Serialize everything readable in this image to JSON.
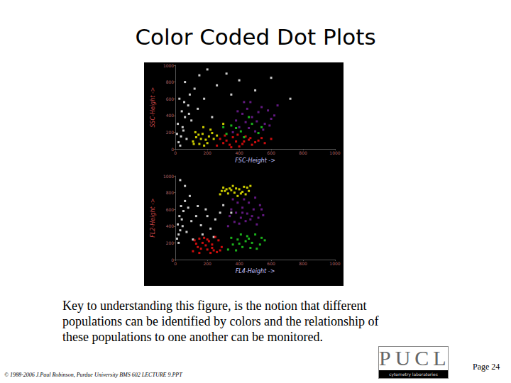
{
  "slide": {
    "title": "Color Coded Dot Plots",
    "caption": [
      "Key to understanding this figure, is the notion that different",
      "populations can be identified by colors and the relationship of",
      "these populations to one another can be monitored."
    ],
    "footer": "© 1988-2006 J.Paul Robinson, Purdue University BMS 602 LECTURE 9.PPT",
    "page": "Page 24",
    "logo": {
      "text": "PUCL",
      "subtitle": "cytometry laboratories"
    }
  },
  "chart_data": [
    {
      "type": "scatter",
      "x_label": "FSC-Height ->",
      "y_label": "SSC-Height ->",
      "xlim": [
        0,
        1000
      ],
      "ylim": [
        0,
        1000
      ],
      "xticks": [
        0,
        200,
        400,
        600,
        800,
        1000
      ],
      "yticks": [
        0,
        200,
        400,
        600,
        800,
        1000
      ],
      "grid": false,
      "marker": "square",
      "series": [
        {
          "color": "#ffffff",
          "values": [
            [
              20,
              80
            ],
            [
              35,
              150
            ],
            [
              50,
              220
            ],
            [
              15,
              300
            ],
            [
              60,
              380
            ],
            [
              40,
              450
            ],
            [
              80,
              520
            ],
            [
              25,
              600
            ],
            [
              90,
              650
            ],
            [
              120,
              720
            ],
            [
              60,
              800
            ],
            [
              150,
              880
            ],
            [
              200,
              950
            ],
            [
              70,
              120
            ],
            [
              45,
              260
            ],
            [
              30,
              40
            ],
            [
              100,
              340
            ],
            [
              180,
              600
            ],
            [
              260,
              760
            ],
            [
              320,
              900
            ],
            [
              400,
              820
            ],
            [
              500,
              700
            ],
            [
              140,
              480
            ],
            [
              10,
              180
            ],
            [
              55,
              560
            ],
            [
              85,
              420
            ],
            [
              230,
              380
            ],
            [
              350,
              650
            ],
            [
              600,
              850
            ],
            [
              720,
              600
            ]
          ]
        },
        {
          "color": "#ffff00",
          "values": [
            [
              110,
              90
            ],
            [
              130,
              140
            ],
            [
              150,
              60
            ],
            [
              170,
              180
            ],
            [
              190,
              110
            ],
            [
              210,
              150
            ],
            [
              125,
              200
            ],
            [
              160,
              120
            ],
            [
              200,
              70
            ],
            [
              230,
              190
            ],
            [
              145,
              170
            ],
            [
              180,
              40
            ],
            [
              240,
              120
            ],
            [
              115,
              60
            ],
            [
              260,
              160
            ],
            [
              220,
              230
            ],
            [
              300,
              300
            ],
            [
              175,
              260
            ]
          ]
        },
        {
          "color": "#ff1010",
          "values": [
            [
              260,
              40
            ],
            [
              300,
              70
            ],
            [
              340,
              50
            ],
            [
              380,
              90
            ],
            [
              420,
              60
            ],
            [
              460,
              110
            ],
            [
              500,
              80
            ],
            [
              540,
              130
            ],
            [
              280,
              120
            ],
            [
              320,
              100
            ],
            [
              360,
              140
            ],
            [
              400,
              30
            ],
            [
              440,
              150
            ],
            [
              480,
              50
            ],
            [
              520,
              100
            ],
            [
              560,
              70
            ],
            [
              600,
              120
            ],
            [
              310,
              160
            ],
            [
              390,
              170
            ],
            [
              470,
              130
            ],
            [
              350,
              20
            ],
            [
              430,
              90
            ]
          ]
        },
        {
          "color": "#7a1fa0",
          "values": [
            [
              360,
              200
            ],
            [
              400,
              260
            ],
            [
              440,
              320
            ],
            [
              480,
              380
            ],
            [
              520,
              440
            ],
            [
              560,
              300
            ],
            [
              600,
              360
            ],
            [
              420,
              420
            ],
            [
              460,
              250
            ],
            [
              500,
              210
            ],
            [
              540,
              500
            ],
            [
              580,
              460
            ],
            [
              620,
              400
            ],
            [
              380,
              340
            ],
            [
              450,
              480
            ],
            [
              510,
              330
            ],
            [
              470,
              560
            ],
            [
              640,
              520
            ],
            [
              390,
              450
            ],
            [
              550,
              230
            ],
            [
              430,
              560
            ],
            [
              590,
              280
            ]
          ]
        },
        {
          "color": "#22dd22",
          "values": [
            [
              320,
              180
            ],
            [
              380,
              250
            ],
            [
              430,
              140
            ],
            [
              480,
              300
            ],
            [
              350,
              280
            ],
            [
              410,
              210
            ],
            [
              520,
              190
            ],
            [
              300,
              260
            ],
            [
              460,
              380
            ],
            [
              540,
              260
            ]
          ]
        }
      ]
    },
    {
      "type": "scatter",
      "x_label": "FL4-Height ->",
      "y_label": "FL2-Height ->",
      "xlim": [
        0,
        1000
      ],
      "ylim": [
        0,
        1000
      ],
      "xticks": [
        0,
        200,
        400,
        600,
        800,
        1000
      ],
      "yticks": [
        0,
        200,
        400,
        600,
        800,
        1000
      ],
      "grid": false,
      "marker": "square",
      "series": [
        {
          "color": "#ffffff",
          "values": [
            [
              10,
              250
            ],
            [
              20,
              300
            ],
            [
              30,
              350
            ],
            [
              15,
              420
            ],
            [
              40,
              480
            ],
            [
              25,
              520
            ],
            [
              50,
              580
            ],
            [
              35,
              640
            ],
            [
              60,
              700
            ],
            [
              20,
              200
            ],
            [
              45,
              400
            ],
            [
              70,
              330
            ],
            [
              100,
              460
            ],
            [
              130,
              520
            ],
            [
              160,
              410
            ],
            [
              190,
              600
            ],
            [
              220,
              370
            ],
            [
              250,
              480
            ],
            [
              280,
              560
            ],
            [
              140,
              640
            ],
            [
              90,
              760
            ],
            [
              60,
              880
            ],
            [
              30,
              950
            ],
            [
              300,
              650
            ],
            [
              170,
              300
            ],
            [
              110,
              240
            ],
            [
              240,
              270
            ],
            [
              350,
              560
            ],
            [
              200,
              520
            ],
            [
              80,
              620
            ]
          ]
        },
        {
          "color": "#ffff00",
          "values": [
            [
              280,
              780
            ],
            [
              310,
              820
            ],
            [
              340,
              850
            ],
            [
              370,
              800
            ],
            [
              400,
              840
            ],
            [
              430,
              870
            ],
            [
              460,
              820
            ],
            [
              300,
              860
            ],
            [
              330,
              790
            ],
            [
              360,
              880
            ],
            [
              390,
              760
            ],
            [
              420,
              810
            ],
            [
              450,
              860
            ],
            [
              350,
              830
            ],
            [
              410,
              790
            ],
            [
              380,
              850
            ],
            [
              440,
              780
            ],
            [
              320,
              840
            ],
            [
              470,
              880
            ],
            [
              290,
              820
            ]
          ]
        },
        {
          "color": "#7a1fa0",
          "values": [
            [
              330,
              400
            ],
            [
              370,
              450
            ],
            [
              410,
              500
            ],
            [
              450,
              550
            ],
            [
              490,
              600
            ],
            [
              530,
              650
            ],
            [
              350,
              600
            ],
            [
              390,
              680
            ],
            [
              430,
              720
            ],
            [
              470,
              480
            ],
            [
              510,
              420
            ],
            [
              550,
              530
            ],
            [
              340,
              520
            ],
            [
              380,
              560
            ],
            [
              420,
              620
            ],
            [
              460,
              680
            ],
            [
              500,
              740
            ],
            [
              540,
              600
            ],
            [
              400,
              430
            ],
            [
              480,
              520
            ],
            [
              440,
              460
            ],
            [
              360,
              720
            ],
            [
              520,
              500
            ],
            [
              420,
              560
            ]
          ]
        },
        {
          "color": "#ff1010",
          "values": [
            [
              110,
              100
            ],
            [
              140,
              150
            ],
            [
              170,
              200
            ],
            [
              200,
              120
            ],
            [
              230,
              180
            ],
            [
              260,
              90
            ],
            [
              290,
              150
            ],
            [
              120,
              230
            ],
            [
              150,
              80
            ],
            [
              180,
              260
            ],
            [
              210,
              220
            ],
            [
              240,
              110
            ],
            [
              270,
              230
            ],
            [
              130,
              190
            ],
            [
              160,
              130
            ],
            [
              190,
              170
            ],
            [
              220,
              80
            ],
            [
              250,
              270
            ],
            [
              280,
              110
            ],
            [
              200,
              240
            ],
            [
              150,
              250
            ],
            [
              230,
              140
            ]
          ]
        },
        {
          "color": "#22dd22",
          "values": [
            [
              330,
              120
            ],
            [
              360,
              180
            ],
            [
              390,
              240
            ],
            [
              420,
              150
            ],
            [
              450,
              280
            ],
            [
              480,
              200
            ],
            [
              510,
              130
            ],
            [
              540,
              260
            ],
            [
              350,
              260
            ],
            [
              380,
              110
            ],
            [
              410,
              300
            ],
            [
              440,
              220
            ],
            [
              470,
              140
            ],
            [
              500,
              300
            ],
            [
              530,
              180
            ],
            [
              560,
              230
            ],
            [
              400,
              190
            ],
            [
              460,
              250
            ]
          ]
        }
      ]
    }
  ]
}
